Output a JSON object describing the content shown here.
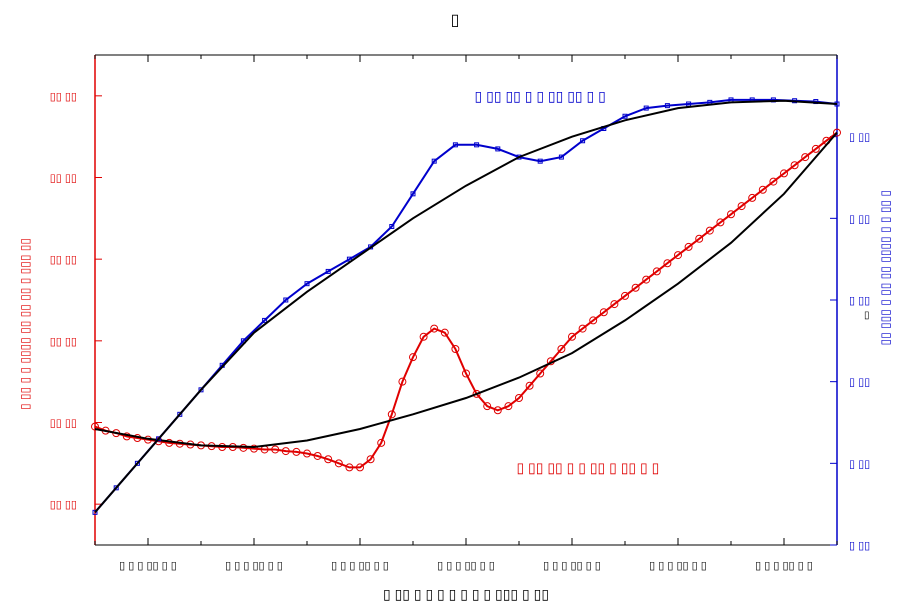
{
  "chart_data": {
    "type": "line",
    "title": "▯",
    "xlabel": "▯ ▯▯ ▯ ▯ ▯ ▯ ▯ ▯ ▯ ▯▯▯ ▯ ▯▯",
    "ylabel_left": "▯ ▯▯ ▯ ▯ ▯▯▯▯ ▯▯ ▯▯ ▯▯ ▯ ▯▯▯ ▯▯",
    "ylabel_right": "▯ ▯▯ ▯ ▯ ▯▯▯▯ ▯▯ ▯▯ ▯ ▯▯▯ ▯▯",
    "ylabel_right_extra": "▯",
    "xlim": [
      0,
      7
    ],
    "ylim_left": [
      0,
      6
    ],
    "ylim_right": [
      0,
      6
    ],
    "x_ticks": [
      0.5,
      1.5,
      2.5,
      3.5,
      4.5,
      5.5,
      6.5
    ],
    "x_tick_labels": [
      "▯ ▯ ▯ ▯▯ ▯ ▯",
      "▯ ▯ ▯ ▯▯ ▯ ▯",
      "▯ ▯ ▯ ▯▯ ▯ ▯",
      "▯ ▯ ▯ ▯▯ ▯ ▯",
      "▯ ▯ ▯ ▯▯ ▯ ▯",
      "▯ ▯ ▯ ▯▯ ▯ ▯",
      "▯ ▯ ▯ ▯▯ ▯ ▯"
    ],
    "y_left_ticks": [
      0.5,
      1.5,
      2.5,
      3.5,
      4.5,
      5.5
    ],
    "y_left_tick_labels": [
      "▯▯ ▯▯",
      "▯▯ ▯▯",
      "▯▯ ▯▯",
      "▯▯ ▯▯",
      "▯▯ ▯▯",
      "▯▯ ▯▯"
    ],
    "y_right_ticks": [
      0,
      1,
      2,
      3,
      4,
      5
    ],
    "y_right_tick_labels": [
      "▯ ▯▯",
      "▯ ▯▯",
      "▯ ▯▯",
      "▯ ▯▯",
      "▯ ▯▯",
      "▯ ▯▯"
    ],
    "annotations": [
      {
        "text": "▯ ▯▯ ▯▯ ▯ ▯ ▯▯ ▯▯ ▯ ▯",
        "color": "#0000cc",
        "x": 4.2,
        "y": 5.5
      },
      {
        "text": "▯ ▯▯ ▯▯ ▯ ▯ ▯▯ ▯ ▯▯ ▯ ▯",
        "color": "#e00000",
        "x": 4.65,
        "y": 0.95
      }
    ],
    "series": [
      {
        "axis": "left",
        "color": "#e00000",
        "marker": "circle",
        "x": [
          0,
          0.1,
          0.2,
          0.3,
          0.4,
          0.5,
          0.6,
          0.7,
          0.8,
          0.9,
          1.0,
          1.1,
          1.2,
          1.3,
          1.4,
          1.5,
          1.6,
          1.7,
          1.8,
          1.9,
          2.0,
          2.1,
          2.2,
          2.3,
          2.4,
          2.5,
          2.6,
          2.7,
          2.8,
          2.9,
          3.0,
          3.1,
          3.2,
          3.3,
          3.4,
          3.5,
          3.6,
          3.7,
          3.8,
          3.9,
          4.0,
          4.1,
          4.2,
          4.3,
          4.4,
          4.5,
          4.6,
          4.7,
          4.8,
          4.9,
          5.0,
          5.1,
          5.2,
          5.3,
          5.4,
          5.5,
          5.6,
          5.7,
          5.8,
          5.9,
          6.0,
          6.1,
          6.2,
          6.3,
          6.4,
          6.5,
          6.6,
          6.7,
          6.8,
          6.9,
          7.0
        ],
        "y": [
          1.45,
          1.4,
          1.37,
          1.33,
          1.31,
          1.29,
          1.27,
          1.25,
          1.24,
          1.23,
          1.22,
          1.21,
          1.2,
          1.2,
          1.19,
          1.18,
          1.17,
          1.17,
          1.15,
          1.14,
          1.12,
          1.09,
          1.05,
          1.0,
          0.95,
          0.95,
          1.05,
          1.25,
          1.6,
          2.0,
          2.3,
          2.55,
          2.65,
          2.6,
          2.4,
          2.1,
          1.85,
          1.7,
          1.65,
          1.7,
          1.8,
          1.95,
          2.1,
          2.25,
          2.4,
          2.55,
          2.65,
          2.75,
          2.85,
          2.95,
          3.05,
          3.15,
          3.25,
          3.35,
          3.45,
          3.55,
          3.65,
          3.75,
          3.85,
          3.95,
          4.05,
          4.15,
          4.25,
          4.35,
          4.45,
          4.55,
          4.65,
          4.75,
          4.85,
          4.95,
          5.05
        ]
      },
      {
        "axis": "left",
        "color": "#000000",
        "marker": "none",
        "x": [
          0,
          0.5,
          1.0,
          1.5,
          2.0,
          2.5,
          3.0,
          3.5,
          4.0,
          4.5,
          5.0,
          5.5,
          6.0,
          6.5,
          7.0
        ],
        "y": [
          1.42,
          1.3,
          1.22,
          1.2,
          1.28,
          1.42,
          1.6,
          1.8,
          2.05,
          2.35,
          2.75,
          3.2,
          3.7,
          4.3,
          5.05
        ]
      },
      {
        "axis": "right",
        "color": "#0000cc",
        "marker": "square",
        "x": [
          0,
          0.2,
          0.4,
          0.6,
          0.8,
          1.0,
          1.2,
          1.4,
          1.6,
          1.8,
          2.0,
          2.2,
          2.4,
          2.6,
          2.8,
          3.0,
          3.2,
          3.4,
          3.6,
          3.8,
          4.0,
          4.2,
          4.4,
          4.6,
          4.8,
          5.0,
          5.2,
          5.4,
          5.6,
          5.8,
          6.0,
          6.2,
          6.4,
          6.6,
          6.8,
          7.0
        ],
        "y": [
          0.4,
          0.7,
          1.0,
          1.3,
          1.6,
          1.9,
          2.2,
          2.5,
          2.75,
          3.0,
          3.2,
          3.35,
          3.5,
          3.65,
          3.9,
          4.3,
          4.7,
          4.9,
          4.9,
          4.85,
          4.75,
          4.7,
          4.75,
          4.95,
          5.1,
          5.25,
          5.35,
          5.38,
          5.4,
          5.42,
          5.45,
          5.45,
          5.45,
          5.44,
          5.43,
          5.4
        ]
      },
      {
        "axis": "right",
        "color": "#000000",
        "marker": "none",
        "x": [
          0,
          0.5,
          1.0,
          1.5,
          2.0,
          2.5,
          3.0,
          3.5,
          4.0,
          4.5,
          5.0,
          5.5,
          6.0,
          6.5,
          7.0
        ],
        "y": [
          0.4,
          1.15,
          1.9,
          2.6,
          3.1,
          3.55,
          4.0,
          4.4,
          4.75,
          5.0,
          5.2,
          5.35,
          5.42,
          5.44,
          5.4
        ]
      }
    ]
  }
}
